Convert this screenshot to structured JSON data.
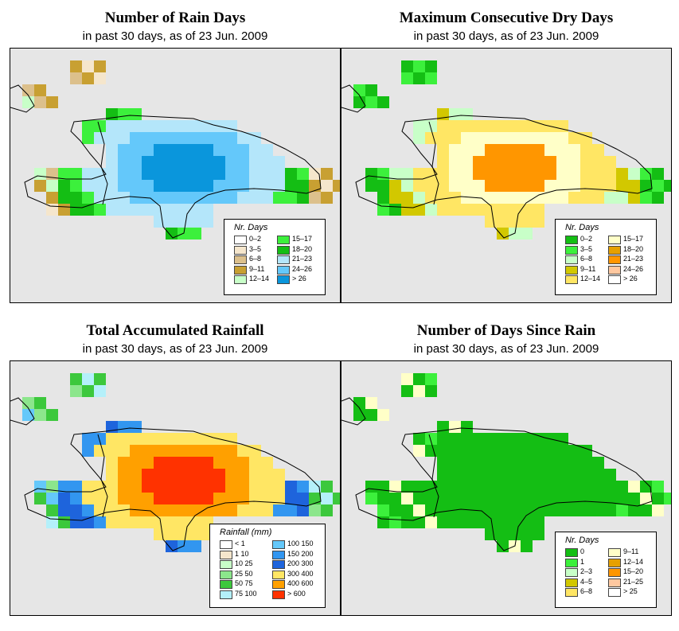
{
  "panels": [
    {
      "title": "Number of Rain Days",
      "subtitle": "in past 30 days, as of  23 Jun. 2009",
      "legend": {
        "title": "Nr. Days",
        "col1": [
          {
            "label": "0–2",
            "color": "#ffffff"
          },
          {
            "label": "3–5",
            "color": "#f5e6cc"
          },
          {
            "label": "6–8",
            "color": "#dcc08c"
          },
          {
            "label": "9–11",
            "color": "#c8a032"
          },
          {
            "label": "12–14",
            "color": "#c8ffc8"
          }
        ],
        "col2": [
          {
            "label": "15–17",
            "color": "#3cf03c"
          },
          {
            "label": "18–20",
            "color": "#14be14"
          },
          {
            "label": "21–23",
            "color": "#b4e6fa"
          },
          {
            "label": "24–26",
            "color": "#64c8fa"
          },
          {
            "label": "> 26",
            "color": "#0a96dc"
          }
        ]
      }
    },
    {
      "title": "Maximum Consecutive Dry Days",
      "subtitle": "in past 30 days, as of  23 Jun. 2009",
      "legend": {
        "title": "Nr. Days",
        "col1": [
          {
            "label": "0–2",
            "color": "#14be14"
          },
          {
            "label": "3–5",
            "color": "#3cf03c"
          },
          {
            "label": "6–8",
            "color": "#c8ffc8"
          },
          {
            "label": "9–11",
            "color": "#d2c800"
          },
          {
            "label": "12–14",
            "color": "#ffe664"
          }
        ],
        "col2": [
          {
            "label": "15–17",
            "color": "#ffffc8"
          },
          {
            "label": "18–20",
            "color": "#e6a000"
          },
          {
            "label": "21–23",
            "color": "#ff9600"
          },
          {
            "label": "24–26",
            "color": "#ffc8a0"
          },
          {
            "label": "> 26",
            "color": "#ffffff"
          }
        ]
      }
    },
    {
      "title": "Total Accumulated Rainfall",
      "subtitle": "in past 30 days, as of  23 Jun. 2009",
      "legend": {
        "title": "Rainfall (mm)",
        "col1": [
          {
            "label": "< 1",
            "color": "#ffffff"
          },
          {
            "label": "1    10",
            "color": "#f5e6cc"
          },
          {
            "label": "10    25",
            "color": "#c8ffc8"
          },
          {
            "label": "25    50",
            "color": "#8ce68c"
          },
          {
            "label": "50    75",
            "color": "#3cc83c"
          },
          {
            "label": "75   100",
            "color": "#b4f0fa"
          }
        ],
        "col2": [
          {
            "label": "100  150",
            "color": "#64c8fa"
          },
          {
            "label": "150  200",
            "color": "#3296f0"
          },
          {
            "label": "200  300",
            "color": "#1e64dc"
          },
          {
            "label": "300  400",
            "color": "#ffe664"
          },
          {
            "label": "400  600",
            "color": "#ffa000"
          },
          {
            "label": "> 600",
            "color": "#ff3200"
          }
        ]
      }
    },
    {
      "title": "Number of Days Since Rain",
      "subtitle": "in past 30 days, as of  23 Jun. 2009",
      "legend": {
        "title": "Nr. Days",
        "col1": [
          {
            "label": "0",
            "color": "#14be14"
          },
          {
            "label": "1",
            "color": "#3cf03c"
          },
          {
            "label": "2–3",
            "color": "#c8ffc8"
          },
          {
            "label": "4–5",
            "color": "#d2c800"
          },
          {
            "label": "6–8",
            "color": "#ffe664"
          }
        ],
        "col2": [
          {
            "label": "9–11",
            "color": "#ffffc8"
          },
          {
            "label": "12–14",
            "color": "#e6a000"
          },
          {
            "label": "15–20",
            "color": "#ff9600"
          },
          {
            "label": "21–25",
            "color": "#ffc8a0"
          },
          {
            "label": "> 25",
            "color": "#ffffff"
          }
        ]
      }
    }
  ]
}
